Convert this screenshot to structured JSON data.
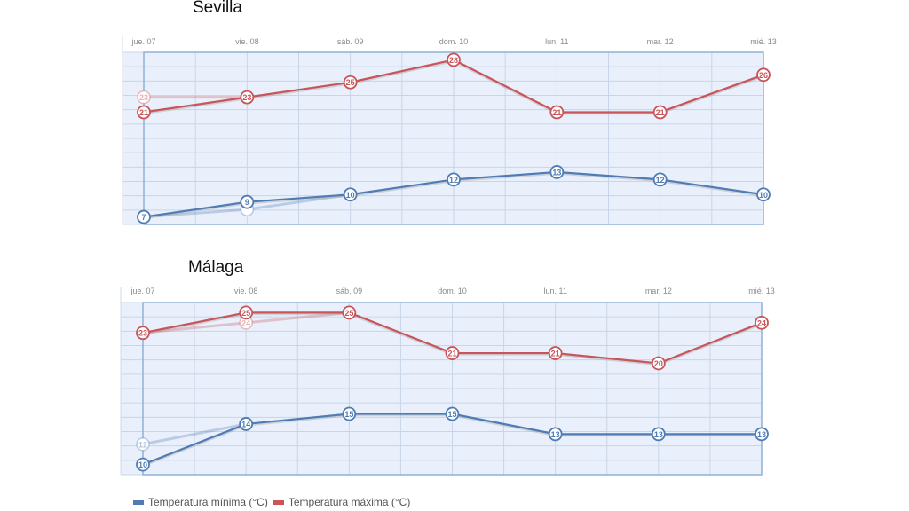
{
  "colors": {
    "min": "#4f7cb4",
    "max": "#c9545a",
    "plot_bg": "#e9f0fb",
    "grid": "#c8d5e8",
    "frame": "#8fb0d8"
  },
  "legend": {
    "min_label": "Temperatura mínima (°C)",
    "max_label": "Temperatura máxima (°C)"
  },
  "chart_data": [
    {
      "type": "line",
      "title": "Sevilla",
      "categories": [
        "jue. 07",
        "vie. 08",
        "sáb. 09",
        "dom. 10",
        "lun. 11",
        "mar. 12",
        "mié. 13"
      ],
      "ylim": [
        6,
        29
      ],
      "series": [
        {
          "name": "Temperatura mínima (°C)",
          "color": "#4f7cb4",
          "values": [
            7,
            9,
            10,
            12,
            13,
            12,
            10
          ]
        },
        {
          "name": "Temperatura máxima (°C)",
          "color": "#c9545a",
          "values": [
            21,
            23,
            25,
            28,
            21,
            21,
            26
          ]
        }
      ],
      "faded_series": [
        {
          "name": "Temperatura mínima (°C) anterior",
          "color": "#4f7cb4",
          "values": [
            7,
            8,
            10
          ],
          "labels": [
            "",
            "",
            ""
          ]
        },
        {
          "name": "Temperatura máxima (°C) anterior",
          "color": "#c9545a",
          "values": [
            23,
            23
          ],
          "labels": [
            "23",
            ""
          ]
        }
      ]
    },
    {
      "type": "line",
      "title": "Málaga",
      "categories": [
        "jue. 07",
        "vie. 08",
        "sáb. 09",
        "dom. 10",
        "lun. 11",
        "mar. 12",
        "mié. 13"
      ],
      "ylim": [
        9,
        26
      ],
      "series": [
        {
          "name": "Temperatura mínima (°C)",
          "color": "#4f7cb4",
          "values": [
            10,
            14,
            15,
            15,
            13,
            13,
            13
          ]
        },
        {
          "name": "Temperatura máxima (°C)",
          "color": "#c9545a",
          "values": [
            23,
            25,
            25,
            21,
            21,
            20,
            24
          ]
        }
      ],
      "faded_series": [
        {
          "name": "Temperatura mínima (°C) anterior",
          "color": "#4f7cb4",
          "values": [
            12,
            14
          ],
          "labels": [
            "12",
            ""
          ]
        },
        {
          "name": "Temperatura máxima (°C) anterior",
          "color": "#c9545a",
          "values": [
            23,
            24,
            25
          ],
          "labels": [
            "",
            "24",
            ""
          ]
        }
      ]
    }
  ]
}
